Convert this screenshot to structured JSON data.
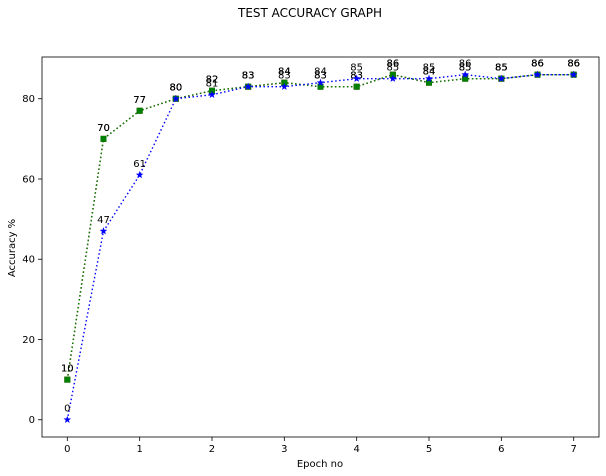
{
  "chart_data": {
    "type": "line",
    "title": "TEST ACCURACY GRAPH",
    "xlabel": "Epoch no",
    "ylabel": "Accuracy %",
    "xlim": [
      -0.35,
      7.35
    ],
    "ylim": [
      -4.3,
      90.4
    ],
    "x": [
      0,
      0.5,
      1,
      1.5,
      2,
      2.5,
      3,
      3.5,
      4,
      4.5,
      5,
      5.5,
      6,
      6.5,
      7
    ],
    "x_ticks": [
      0,
      1,
      2,
      3,
      4,
      5,
      6,
      7
    ],
    "y_ticks": [
      0,
      20,
      40,
      60,
      80
    ],
    "grid": false,
    "legend": "none",
    "series": [
      {
        "color": "#8b0000",
        "marker": "square",
        "line_style": "dotted",
        "values": [
          10,
          70,
          77,
          80,
          82,
          83,
          84,
          83,
          83,
          86,
          84,
          85,
          85,
          86,
          86
        ],
        "labels": [
          "10",
          "70",
          "77",
          "80",
          "82",
          "83",
          "84",
          "83",
          "83",
          "86",
          "84",
          "85",
          "85",
          "86",
          "86"
        ]
      },
      {
        "color": "#008000",
        "marker": "square",
        "line_style": "dotted",
        "values": [
          10,
          70,
          77,
          80,
          82,
          83,
          84,
          83,
          83,
          86,
          84,
          85,
          85,
          86,
          86
        ],
        "labels": [
          "10",
          "70",
          "77",
          "80",
          "82",
          "83",
          "84",
          "83",
          "83",
          "86",
          "84",
          "85",
          "85",
          "86",
          "86"
        ]
      },
      {
        "color": "#0000ff",
        "marker": "star",
        "line_style": "dotted",
        "values": [
          0,
          47,
          61,
          80,
          81,
          83,
          83,
          84,
          85,
          85,
          85,
          86,
          85,
          86,
          86
        ],
        "labels": [
          "0",
          "47",
          "61",
          "80",
          "81",
          "83",
          "83",
          "84",
          "85",
          "85",
          "85",
          "86",
          "85",
          "86",
          "86"
        ]
      }
    ]
  }
}
